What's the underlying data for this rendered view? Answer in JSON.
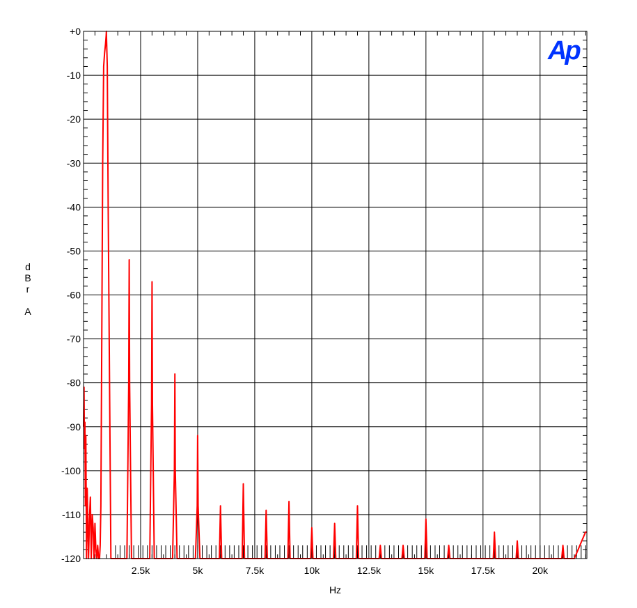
{
  "chart_data": {
    "type": "line",
    "title": "",
    "xlabel": "Hz",
    "ylabel_lines": [
      "d",
      "B",
      "r",
      "",
      "A"
    ],
    "xlim": [
      0,
      22050
    ],
    "ylim": [
      -120,
      0
    ],
    "x_ticks": [
      2500,
      5000,
      7500,
      10000,
      12500,
      15000,
      17500,
      20000
    ],
    "x_tick_labels": [
      "2.5k",
      "5k",
      "7.5k",
      "10k",
      "12.5k",
      "15k",
      "17.5k",
      "20k"
    ],
    "y_ticks": [
      0,
      -10,
      -20,
      -30,
      -40,
      -50,
      -60,
      -70,
      -80,
      -90,
      -100,
      -110,
      -120
    ],
    "y_tick_labels": [
      "+0",
      "-10",
      "-20",
      "-30",
      "-40",
      "-50",
      "-60",
      "-70",
      "-80",
      "-90",
      "-100",
      "-110",
      "-120"
    ],
    "grid": true,
    "noise_floor_db": -117,
    "noise_floor_spacing_hz": 200,
    "series_color": "#ff0000",
    "series": [
      {
        "x": [
          0,
          20,
          40,
          60,
          80,
          100,
          130,
          160,
          190,
          220,
          260,
          300,
          340,
          380,
          420,
          460,
          500,
          540,
          580,
          620,
          660,
          700,
          730,
          760,
          800,
          840,
          880,
          920,
          960,
          990,
          1000,
          1010,
          1040,
          1080,
          1200,
          1600,
          1900,
          1980,
          2000,
          2020,
          2100,
          2400,
          2900,
          2980,
          3000,
          3020,
          3100,
          3400,
          3900,
          3980,
          4000,
          4020,
          4100,
          4400,
          4900,
          4980,
          5000,
          5020,
          5100,
          5500,
          5950,
          6000,
          6050,
          6500,
          6950,
          7000,
          7050,
          7500,
          7950,
          8000,
          8050,
          8500,
          8950,
          9000,
          9050,
          9500,
          9950,
          10000,
          10050,
          10500,
          10950,
          11000,
          11050,
          11500,
          11950,
          12000,
          12050,
          12500,
          12950,
          13000,
          13050,
          13500,
          13950,
          14000,
          14050,
          14500,
          14950,
          15000,
          15050,
          15500,
          15950,
          16000,
          16050,
          16500,
          17000,
          17500,
          17950,
          18000,
          18050,
          18500,
          18950,
          19000,
          19050,
          19500,
          20000,
          20500,
          20950,
          21000,
          21050,
          21500,
          21990,
          22050
        ],
        "y": [
          -90,
          -81,
          -95,
          -89,
          -108,
          -92,
          -120,
          -104,
          -112,
          -120,
          -111,
          -106,
          -120,
          -110,
          -113,
          -120,
          -112,
          -118,
          -120,
          -117,
          -120,
          -120,
          -117,
          -108,
          -70,
          -30,
          -8,
          -5,
          -3,
          -1,
          0,
          -2,
          -8,
          -40,
          -120,
          -120,
          -120,
          -80,
          -52,
          -80,
          -120,
          -120,
          -120,
          -85,
          -57,
          -85,
          -120,
          -120,
          -120,
          -100,
          -78,
          -100,
          -120,
          -120,
          -120,
          -108,
          -92,
          -108,
          -120,
          -120,
          -120,
          -108,
          -120,
          -120,
          -120,
          -103,
          -120,
          -120,
          -120,
          -109,
          -120,
          -120,
          -120,
          -107,
          -120,
          -120,
          -120,
          -113,
          -120,
          -120,
          -120,
          -112,
          -120,
          -120,
          -120,
          -108,
          -120,
          -120,
          -120,
          -117,
          -120,
          -120,
          -120,
          -117,
          -120,
          -120,
          -120,
          -111,
          -120,
          -120,
          -120,
          -117,
          -120,
          -120,
          -120,
          -120,
          -120,
          -114,
          -120,
          -120,
          -120,
          -116,
          -120,
          -120,
          -120,
          -120,
          -120,
          -117,
          -120,
          -120,
          -114,
          -114
        ]
      }
    ]
  },
  "logo_text": "Ap",
  "logo_color": "#0033ff"
}
